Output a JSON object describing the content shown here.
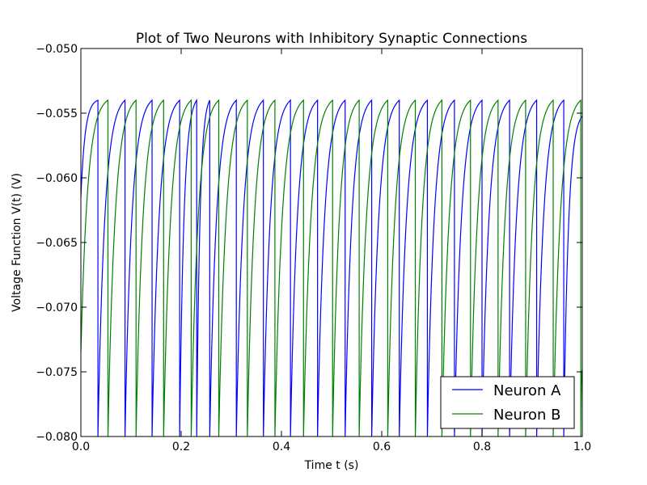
{
  "chart_data": {
    "type": "line",
    "title": "Plot of Two Neurons with Inhibitory Synaptic Connections",
    "xlabel": "Time t (s)",
    "ylabel": "Voltage Function V(t) (V)",
    "xlim": [
      0.0,
      1.0
    ],
    "ylim": [
      -0.08,
      -0.05
    ],
    "x_ticks": [
      0.0,
      0.2,
      0.4,
      0.6,
      0.8,
      1.0
    ],
    "x_tick_labels": [
      "0.0",
      "0.2",
      "0.4",
      "0.6",
      "0.8",
      "1.0"
    ],
    "y_ticks": [
      -0.08,
      -0.075,
      -0.07,
      -0.065,
      -0.06,
      -0.055,
      -0.05
    ],
    "y_tick_labels": [
      "−0.080",
      "−0.075",
      "−0.070",
      "−0.065",
      "−0.060",
      "−0.055",
      "−0.050"
    ],
    "grid": false,
    "legend": {
      "position": "lower-right"
    },
    "series": [
      {
        "name": "Neuron A",
        "color": "#0000ff",
        "start_value": -0.0615,
        "threshold": -0.054,
        "reset": -0.08,
        "spike_times": [
          0.034,
          0.088,
          0.142,
          0.197,
          0.231,
          0.257,
          0.31,
          0.364,
          0.418,
          0.472,
          0.527,
          0.58,
          0.635,
          0.691,
          0.745,
          0.8,
          0.855,
          0.909,
          0.963
        ]
      },
      {
        "name": "Neuron B",
        "color": "#008000",
        "start_value": -0.0735,
        "threshold": -0.054,
        "reset": -0.08,
        "spike_times": [
          0.054,
          0.11,
          0.165,
          0.22,
          0.275,
          0.332,
          0.387,
          0.444,
          0.502,
          0.555,
          0.612,
          0.667,
          0.72,
          0.777,
          0.832,
          0.887,
          0.942,
          0.997
        ]
      }
    ]
  }
}
